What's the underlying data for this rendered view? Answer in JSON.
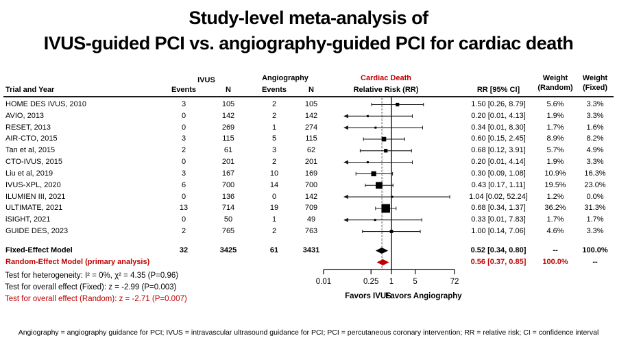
{
  "title": {
    "line1": "Study-level meta-analysis of",
    "line2": "IVUS-guided PCI vs. angiography-guided PCI for cardiac death"
  },
  "table": {
    "col_trial": "Trial and Year",
    "group_ivus": "IVUS",
    "group_angio": "Angiography",
    "col_events": "Events",
    "col_n": "N",
    "plot_header_line1": "Cardiac Death",
    "plot_header_line2": "Relative Risk (RR)",
    "col_rr": "RR [95% CI]",
    "col_weight_random_top": "Weight",
    "col_weight_random_bottom": "(Random)",
    "col_weight_fixed_top": "Weight",
    "col_weight_fixed_bottom": "(Fixed)"
  },
  "chart_data": {
    "type": "forest",
    "x_scale": "log",
    "x_range": [
      0.01,
      72
    ],
    "reference_line": 1,
    "pooled_dashed": [
      0.52,
      0.56
    ],
    "xaxis_ticks": [
      "0.01",
      "0.25",
      "1",
      "5",
      "72"
    ],
    "favors_left": "Favors IVUS",
    "favors_right": "Favors Angiography",
    "studies": [
      {
        "trial": "HOME DES IVUS, 2010",
        "ivus_events": "3",
        "ivus_n": "105",
        "angio_events": "2",
        "angio_n": "105",
        "rr": 1.5,
        "ci_low": 0.26,
        "ci_high": 8.79,
        "rr_label": "1.50 [0.26, 8.79]",
        "weight_random": "5.6%",
        "weight_fixed": "3.3%",
        "wr_value": 5.6
      },
      {
        "trial": "AVIO, 2013",
        "ivus_events": "0",
        "ivus_n": "142",
        "angio_events": "2",
        "angio_n": "142",
        "rr": 0.2,
        "ci_low": 0.01,
        "ci_high": 4.13,
        "rr_label": "0.20 [0.01, 4.13]",
        "weight_random": "1.9%",
        "weight_fixed": "3.3%",
        "wr_value": 1.9
      },
      {
        "trial": "RESET, 2013",
        "ivus_events": "0",
        "ivus_n": "269",
        "angio_events": "1",
        "angio_n": "274",
        "rr": 0.34,
        "ci_low": 0.01,
        "ci_high": 8.3,
        "rr_label": "0.34 [0.01, 8.30]",
        "weight_random": "1.7%",
        "weight_fixed": "1.6%",
        "wr_value": 1.7
      },
      {
        "trial": "AIR-CTO, 2015",
        "ivus_events": "3",
        "ivus_n": "115",
        "angio_events": "5",
        "angio_n": "115",
        "rr": 0.6,
        "ci_low": 0.15,
        "ci_high": 2.45,
        "rr_label": "0.60 [0.15, 2.45]",
        "weight_random": "8.9%",
        "weight_fixed": "8.2%",
        "wr_value": 8.9
      },
      {
        "trial": "Tan et al, 2015",
        "ivus_events": "2",
        "ivus_n": "61",
        "angio_events": "3",
        "angio_n": "62",
        "rr": 0.68,
        "ci_low": 0.12,
        "ci_high": 3.91,
        "rr_label": "0.68 [0.12, 3.91]",
        "weight_random": "5.7%",
        "weight_fixed": "4.9%",
        "wr_value": 5.7
      },
      {
        "trial": "CTO-IVUS, 2015",
        "ivus_events": "0",
        "ivus_n": "201",
        "angio_events": "2",
        "angio_n": "201",
        "rr": 0.2,
        "ci_low": 0.01,
        "ci_high": 4.14,
        "rr_label": "0.20 [0.01, 4.14]",
        "weight_random": "1.9%",
        "weight_fixed": "3.3%",
        "wr_value": 1.9
      },
      {
        "trial": "Liu et al, 2019",
        "ivus_events": "3",
        "ivus_n": "167",
        "angio_events": "10",
        "angio_n": "169",
        "rr": 0.3,
        "ci_low": 0.09,
        "ci_high": 1.08,
        "rr_label": "0.30 [0.09, 1.08]",
        "weight_random": "10.9%",
        "weight_fixed": "16.3%",
        "wr_value": 10.9
      },
      {
        "trial": "IVUS-XPL, 2020",
        "ivus_events": "6",
        "ivus_n": "700",
        "angio_events": "14",
        "angio_n": "700",
        "rr": 0.43,
        "ci_low": 0.17,
        "ci_high": 1.11,
        "rr_label": "0.43 [0.17, 1.11]",
        "weight_random": "19.5%",
        "weight_fixed": "23.0%",
        "wr_value": 19.5
      },
      {
        "trial": "ILUMIEN III, 2021",
        "ivus_events": "0",
        "ivus_n": "136",
        "angio_events": "0",
        "angio_n": "142",
        "rr": 1.04,
        "ci_low": 0.02,
        "ci_high": 52.24,
        "rr_label": "1.04 [0.02, 52.24]",
        "weight_random": "1.2%",
        "weight_fixed": "0.0%",
        "wr_value": 1.2
      },
      {
        "trial": "ULTIMATE, 2021",
        "ivus_events": "13",
        "ivus_n": "714",
        "angio_events": "19",
        "angio_n": "709",
        "rr": 0.68,
        "ci_low": 0.34,
        "ci_high": 1.37,
        "rr_label": "0.68 [0.34, 1.37]",
        "weight_random": "36.2%",
        "weight_fixed": "31.3%",
        "wr_value": 36.2
      },
      {
        "trial": "iSIGHT, 2021",
        "ivus_events": "0",
        "ivus_n": "50",
        "angio_events": "1",
        "angio_n": "49",
        "rr": 0.33,
        "ci_low": 0.01,
        "ci_high": 7.83,
        "rr_label": "0.33 [0.01, 7.83]",
        "weight_random": "1.7%",
        "weight_fixed": "1.7%",
        "wr_value": 1.7
      },
      {
        "trial": "GUIDE DES, 2023",
        "ivus_events": "2",
        "ivus_n": "765",
        "angio_events": "2",
        "angio_n": "763",
        "rr": 1.0,
        "ci_low": 0.14,
        "ci_high": 7.06,
        "rr_label": "1.00 [0.14, 7.06]",
        "weight_random": "4.6%",
        "weight_fixed": "3.3%",
        "wr_value": 4.6
      }
    ],
    "summaries": [
      {
        "trial": "Fixed-Effect Model",
        "ivus_events": "32",
        "ivus_n": "3425",
        "angio_events": "61",
        "angio_n": "3431",
        "rr": 0.52,
        "ci_low": 0.34,
        "ci_high": 0.8,
        "rr_label": "0.52 [0.34, 0.80]",
        "weight_random": "--",
        "weight_fixed": "100.0%",
        "color": "#000000"
      },
      {
        "trial": "Random-Effect Model (primary analysis)",
        "ivus_events": "",
        "ivus_n": "",
        "angio_events": "",
        "angio_n": "",
        "rr": 0.56,
        "ci_low": 0.37,
        "ci_high": 0.85,
        "rr_label": "0.56 [0.37, 0.85]",
        "weight_random": "100.0%",
        "weight_fixed": "--",
        "color": "#C00000"
      }
    ]
  },
  "tests": {
    "heterogeneity": "Test for heterogeneity:  I² = 0%,   χ² = 4.35  (P=0.96)",
    "overall_fixed": "Test for overall effect (Fixed):   z = -2.99  (P=0.003)",
    "overall_random": "Test for overall effect (Random):   z = -2.71  (P=0.007)"
  },
  "footnote": "Angiography = angiography guidance for PCI; IVUS = intravascular ultrasound guidance for PCI; PCI = percutaneous coronary intervention; RR = relative risk; CI = confidence interval",
  "colors": {
    "accent_red": "#C00000",
    "marker_black": "#000000",
    "ci_line": "#1a1a1a",
    "dashed_fixed": "#808080",
    "dashed_random": "#b8b8b8"
  }
}
